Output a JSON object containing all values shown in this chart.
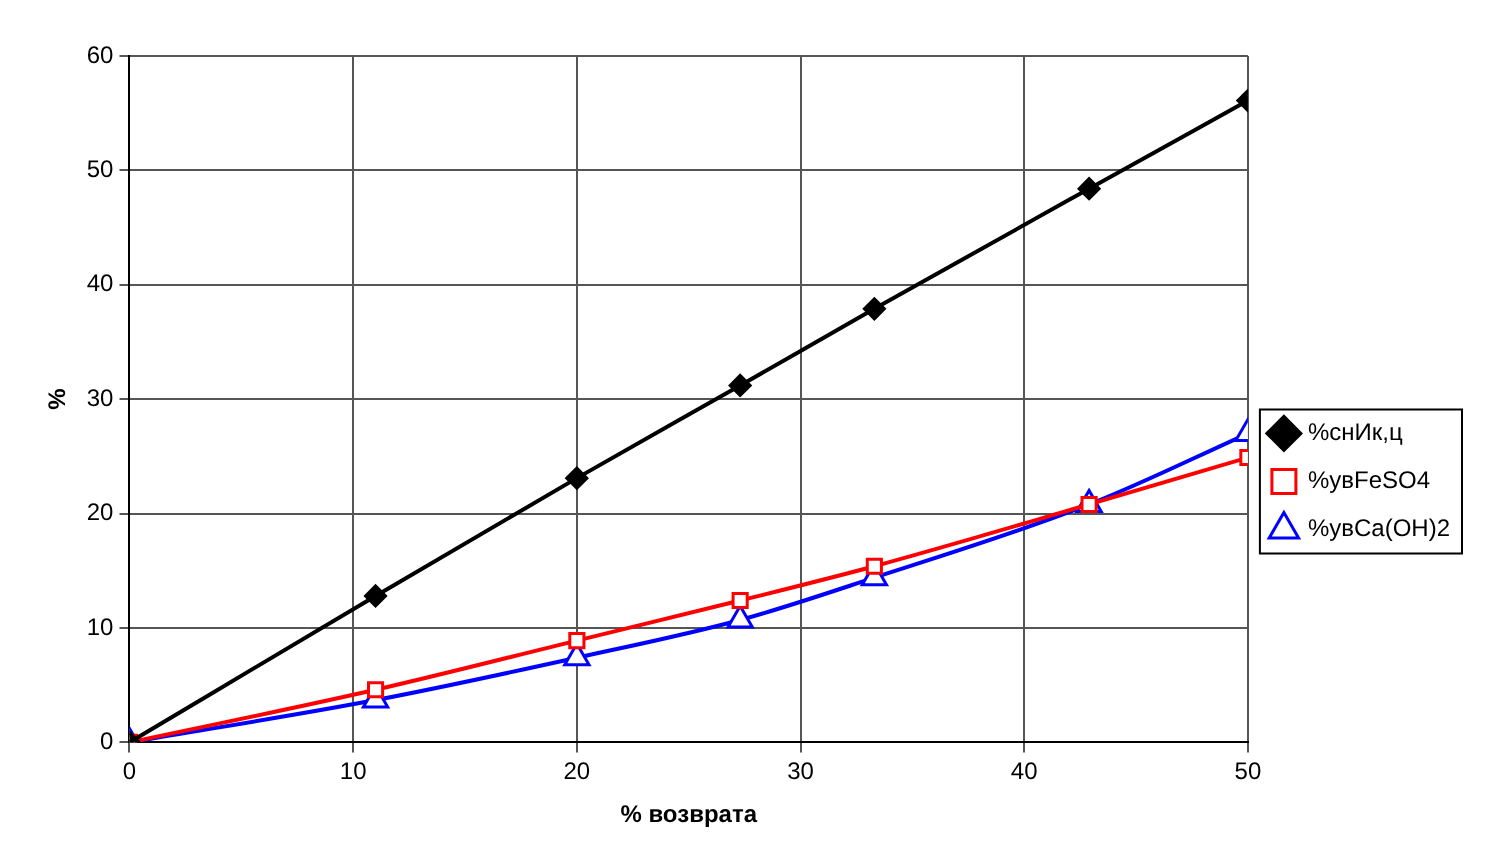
{
  "chart_data": {
    "type": "line",
    "xlabel": "% возврата",
    "ylabel": "%",
    "x": [
      0,
      11,
      20,
      27.3,
      33.3,
      42.9,
      50
    ],
    "series": [
      {
        "name": "%снИк,ц",
        "color": "#000000",
        "marker": "diamond",
        "values": [
          0,
          12.8,
          23.1,
          31.2,
          37.9,
          48.4,
          56.1
        ]
      },
      {
        "name": "%увFeSO4",
        "color": "#ff0000",
        "marker": "square",
        "values": [
          0,
          4.6,
          8.9,
          12.4,
          15.4,
          20.8,
          24.9
        ]
      },
      {
        "name": "%увCa(OH)2",
        "color": "#0000ff",
        "marker": "triangle",
        "values": [
          0,
          3.7,
          7.4,
          10.7,
          14.4,
          20.8,
          27.0
        ]
      }
    ],
    "xlim": [
      0,
      50
    ],
    "xticks": [
      0,
      10,
      20,
      30,
      40,
      50
    ],
    "ylim": [
      0,
      60
    ],
    "yticks": [
      0,
      10,
      20,
      30,
      40,
      50,
      60
    ],
    "grid": true,
    "legend": "right"
  }
}
